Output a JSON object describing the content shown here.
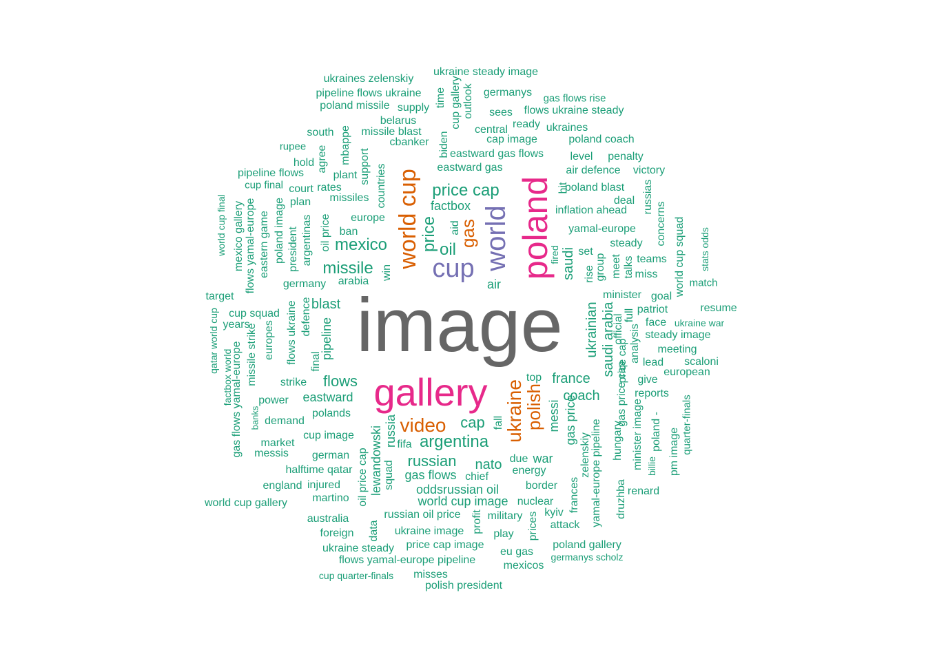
{
  "colors": {
    "level1": "#1b9e77",
    "level2": "#d95f02",
    "level3": "#7570b3",
    "level4": "#e7298a",
    "level5": "#666666"
  },
  "words": [
    {
      "text": "image",
      "level": 5
    },
    {
      "text": "gallery",
      "level": 4
    },
    {
      "text": "poland",
      "level": 4
    },
    {
      "text": "world",
      "level": 3
    },
    {
      "text": "cup",
      "level": 3
    },
    {
      "text": "world cup",
      "level": 2
    },
    {
      "text": "ukraine",
      "level": 2
    },
    {
      "text": "video",
      "level": 2
    },
    {
      "text": "gas",
      "level": 2
    },
    {
      "text": "polish",
      "level": 2
    },
    {
      "text": "ukraine steady image",
      "level": 1
    },
    {
      "text": "ukraines zelenskiy",
      "level": 1
    },
    {
      "text": "pipeline flows ukraine",
      "level": 1
    },
    {
      "text": "poland missile",
      "level": 1
    },
    {
      "text": "supply",
      "level": 1
    },
    {
      "text": "time",
      "level": 1
    },
    {
      "text": "cup gallery",
      "level": 1
    },
    {
      "text": "outlook",
      "level": 1
    },
    {
      "text": "germanys",
      "level": 1
    },
    {
      "text": "gas flows rise",
      "level": 1
    },
    {
      "text": "sees",
      "level": 1
    },
    {
      "text": "flows ukraine steady",
      "level": 1
    },
    {
      "text": "belarus",
      "level": 1
    },
    {
      "text": "ready",
      "level": 1
    },
    {
      "text": "ukraines",
      "level": 1
    },
    {
      "text": "south",
      "level": 1
    },
    {
      "text": "missile blast",
      "level": 1
    },
    {
      "text": "central",
      "level": 1
    },
    {
      "text": "mbappe",
      "level": 1
    },
    {
      "text": "cbanker",
      "level": 1
    },
    {
      "text": "biden",
      "level": 1
    },
    {
      "text": "cap image",
      "level": 1
    },
    {
      "text": "poland coach",
      "level": 1
    },
    {
      "text": "rupee",
      "level": 1
    },
    {
      "text": "support",
      "level": 1
    },
    {
      "text": "agree",
      "level": 1
    },
    {
      "text": "hold",
      "level": 1
    },
    {
      "text": "eastward gas flows",
      "level": 1
    },
    {
      "text": "level",
      "level": 1
    },
    {
      "text": "penalty",
      "level": 1
    },
    {
      "text": "pipeline flows",
      "level": 1
    },
    {
      "text": "plant",
      "level": 1
    },
    {
      "text": "countries",
      "level": 1
    },
    {
      "text": "eastward gas",
      "level": 1
    },
    {
      "text": "air defence",
      "level": 1
    },
    {
      "text": "victory",
      "level": 1
    },
    {
      "text": "cup final",
      "level": 1
    },
    {
      "text": "court",
      "level": 1
    },
    {
      "text": "rates",
      "level": 1
    },
    {
      "text": "price cap",
      "level": 1
    },
    {
      "text": "hit",
      "level": 1
    },
    {
      "text": "poland blast",
      "level": 1
    },
    {
      "text": "russias",
      "level": 1
    },
    {
      "text": "world cup final",
      "level": 1
    },
    {
      "text": "plan",
      "level": 1
    },
    {
      "text": "missiles",
      "level": 1
    },
    {
      "text": "factbox",
      "level": 1
    },
    {
      "text": "deal",
      "level": 1
    },
    {
      "text": "inflation ahead",
      "level": 1
    },
    {
      "text": "mexico gallery",
      "level": 1
    },
    {
      "text": "flows yamal-europe",
      "level": 1
    },
    {
      "text": "eastern game",
      "level": 1
    },
    {
      "text": "poland image",
      "level": 1
    },
    {
      "text": "president",
      "level": 1
    },
    {
      "text": "argentinas",
      "level": 1
    },
    {
      "text": "oil price",
      "level": 1
    },
    {
      "text": "europe",
      "level": 1
    },
    {
      "text": "aid",
      "level": 1
    },
    {
      "text": "price",
      "level": 1
    },
    {
      "text": "concerns",
      "level": 1
    },
    {
      "text": "yamal-europe",
      "level": 1
    },
    {
      "text": "world cup squad",
      "level": 1
    },
    {
      "text": "stats odds",
      "level": 1
    },
    {
      "text": "ban",
      "level": 1
    },
    {
      "text": "mexico",
      "level": 1
    },
    {
      "text": "oil",
      "level": 1
    },
    {
      "text": "steady",
      "level": 1
    },
    {
      "text": "fired",
      "level": 1
    },
    {
      "text": "saudi",
      "level": 1
    },
    {
      "text": "set",
      "level": 1
    },
    {
      "text": "meet",
      "level": 1
    },
    {
      "text": "teams",
      "level": 1
    },
    {
      "text": "talks",
      "level": 1
    },
    {
      "text": "group",
      "level": 1
    },
    {
      "text": "missile",
      "level": 1
    },
    {
      "text": "win",
      "level": 1
    },
    {
      "text": "rise",
      "level": 1
    },
    {
      "text": "miss",
      "level": 1
    },
    {
      "text": "germany",
      "level": 1
    },
    {
      "text": "arabia",
      "level": 1
    },
    {
      "text": "air",
      "level": 1
    },
    {
      "text": "match",
      "level": 1
    },
    {
      "text": "target",
      "level": 1
    },
    {
      "text": "minister",
      "level": 1
    },
    {
      "text": "goal",
      "level": 1
    },
    {
      "text": "blast",
      "level": 1
    },
    {
      "text": "resume",
      "level": 1
    },
    {
      "text": "cup squad",
      "level": 1
    },
    {
      "text": "flows ukraine",
      "level": 1
    },
    {
      "text": "defence",
      "level": 1
    },
    {
      "text": "patriot",
      "level": 1
    },
    {
      "text": "qatar world cup",
      "level": 1
    },
    {
      "text": "years",
      "level": 1
    },
    {
      "text": "ukrainian",
      "level": 1
    },
    {
      "text": "official",
      "level": 1
    },
    {
      "text": "full",
      "level": 1
    },
    {
      "text": "face",
      "level": 1
    },
    {
      "text": "ukraine war",
      "level": 1
    },
    {
      "text": "pipeline",
      "level": 1
    },
    {
      "text": "saudi arabia",
      "level": 1
    },
    {
      "text": "steady image",
      "level": 1
    },
    {
      "text": "analysis",
      "level": 1
    },
    {
      "text": "europes",
      "level": 1
    },
    {
      "text": "gas flows yamal-europe",
      "level": 1
    },
    {
      "text": "missile strike",
      "level": 1
    },
    {
      "text": "final",
      "level": 1
    },
    {
      "text": "factbox world",
      "level": 1
    },
    {
      "text": "meeting",
      "level": 1
    },
    {
      "text": "price cap",
      "level": 1
    },
    {
      "text": "lead",
      "level": 1
    },
    {
      "text": "scaloni",
      "level": 1
    },
    {
      "text": "gas price cap",
      "level": 1
    },
    {
      "text": "european",
      "level": 1
    },
    {
      "text": "top",
      "level": 1
    },
    {
      "text": "flows",
      "level": 1
    },
    {
      "text": "france",
      "level": 1
    },
    {
      "text": "give",
      "level": 1
    },
    {
      "text": "strike",
      "level": 1
    },
    {
      "text": "coach",
      "level": 1
    },
    {
      "text": "eastward",
      "level": 1
    },
    {
      "text": "reports",
      "level": 1
    },
    {
      "text": "power",
      "level": 1
    },
    {
      "text": "quarter-finals",
      "level": 1
    },
    {
      "text": "banks",
      "level": 1
    },
    {
      "text": "messi",
      "level": 1
    },
    {
      "text": "gas price",
      "level": 1
    },
    {
      "text": "polands",
      "level": 1
    },
    {
      "text": "demand",
      "level": 1
    },
    {
      "text": "fall",
      "level": 1
    },
    {
      "text": "lewandowski",
      "level": 1
    },
    {
      "text": "cap",
      "level": 1
    },
    {
      "text": "poland -",
      "level": 1
    },
    {
      "text": "minister image",
      "level": 1
    },
    {
      "text": "market",
      "level": 1
    },
    {
      "text": "cup image",
      "level": 1
    },
    {
      "text": "russia",
      "level": 1
    },
    {
      "text": "fifa",
      "level": 1
    },
    {
      "text": "argentina",
      "level": 1
    },
    {
      "text": "zelenskiy",
      "level": 1
    },
    {
      "text": "hungary",
      "level": 1
    },
    {
      "text": "pm image",
      "level": 1
    },
    {
      "text": "messis",
      "level": 1
    },
    {
      "text": "german",
      "level": 1
    },
    {
      "text": "yamal-europe pipeline",
      "level": 1
    },
    {
      "text": "billie",
      "level": 1
    },
    {
      "text": "russian",
      "level": 1
    },
    {
      "text": "nato",
      "level": 1
    },
    {
      "text": "due",
      "level": 1
    },
    {
      "text": "war",
      "level": 1
    },
    {
      "text": "halftime qatar",
      "level": 1
    },
    {
      "text": "squad",
      "level": 1
    },
    {
      "text": "energy",
      "level": 1
    },
    {
      "text": "gas flows",
      "level": 1
    },
    {
      "text": "chief",
      "level": 1
    },
    {
      "text": "druzhba",
      "level": 1
    },
    {
      "text": "england",
      "level": 1
    },
    {
      "text": "injured",
      "level": 1
    },
    {
      "text": "oil price cap",
      "level": 1
    },
    {
      "text": "border",
      "level": 1
    },
    {
      "text": "renard",
      "level": 1
    },
    {
      "text": "oddsrussian oil",
      "level": 1
    },
    {
      "text": "frances",
      "level": 1
    },
    {
      "text": "martino",
      "level": 1
    },
    {
      "text": "world cup gallery",
      "level": 1
    },
    {
      "text": "world cup image",
      "level": 1
    },
    {
      "text": "nuclear",
      "level": 1
    },
    {
      "text": "kyiv",
      "level": 1
    },
    {
      "text": "russian oil price",
      "level": 1
    },
    {
      "text": "australia",
      "level": 1
    },
    {
      "text": "military",
      "level": 1
    },
    {
      "text": "profit",
      "level": 1
    },
    {
      "text": "prices",
      "level": 1
    },
    {
      "text": "attack",
      "level": 1
    },
    {
      "text": "data",
      "level": 1
    },
    {
      "text": "foreign",
      "level": 1
    },
    {
      "text": "ukraine image",
      "level": 1
    },
    {
      "text": "play",
      "level": 1
    },
    {
      "text": "price cap image",
      "level": 1
    },
    {
      "text": "poland gallery",
      "level": 1
    },
    {
      "text": "ukraine steady",
      "level": 1
    },
    {
      "text": "eu gas",
      "level": 1
    },
    {
      "text": "germanys scholz",
      "level": 1
    },
    {
      "text": "flows yamal-europe pipeline",
      "level": 1
    },
    {
      "text": "mexicos",
      "level": 1
    },
    {
      "text": "cup quarter-finals",
      "level": 1
    },
    {
      "text": "misses",
      "level": 1
    },
    {
      "text": "polish president",
      "level": 1
    }
  ]
}
